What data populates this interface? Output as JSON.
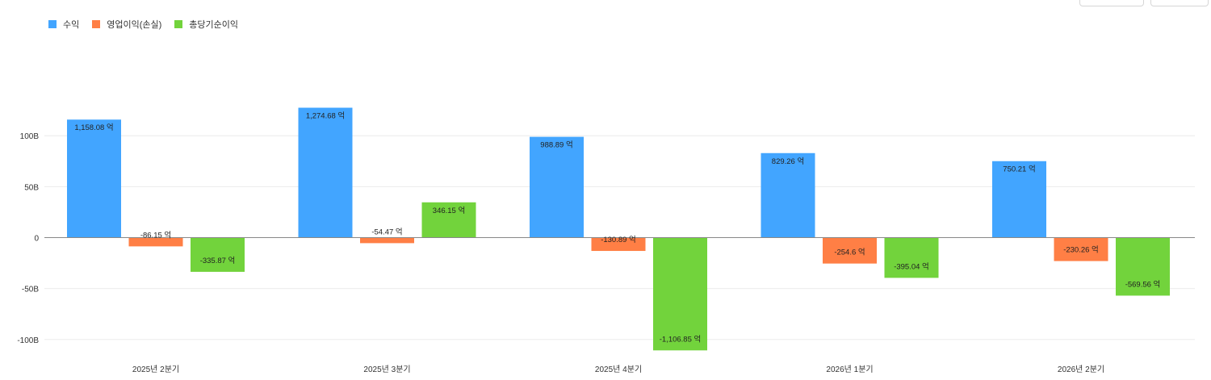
{
  "chart_data": {
    "type": "bar",
    "categories": [
      "2025년 2분기",
      "2025년 3분기",
      "2025년 4분기",
      "2026년 1분기",
      "2026년 2분기"
    ],
    "series": [
      {
        "name": "수익",
        "color": "#42A5FF",
        "values": [
          115.808,
          127.468,
          98.889,
          82.926,
          75.021
        ],
        "labels": [
          "1,158.08 억",
          "1,274.68 억",
          "988.89 억",
          "829.26 억",
          "750.21 억"
        ]
      },
      {
        "name": "영업이익(손실)",
        "color": "#FF7F45",
        "values": [
          -8.615,
          -5.447,
          -13.089,
          -25.46,
          -23.026
        ],
        "labels": [
          "-86.15 억",
          "-54.47 억",
          "-130.89 억",
          "-254.6 억",
          "-230.26 억"
        ]
      },
      {
        "name": "총당기순이익",
        "color": "#72D33C",
        "values": [
          -33.587,
          34.615,
          -110.685,
          -39.504,
          -56.956
        ],
        "labels": [
          "-335.87 억",
          "346.15 억",
          "-1,106.85 억",
          "-395.04 억",
          "-569.56 억"
        ]
      }
    ],
    "y_ticks": [
      100,
      50,
      0,
      -50,
      -100
    ],
    "y_tick_labels": [
      "100B",
      "50B",
      "0",
      "-50B",
      "-100B"
    ],
    "ylim": [
      -110.685,
      127.468
    ],
    "grid": true,
    "legend_position": "top-left"
  }
}
